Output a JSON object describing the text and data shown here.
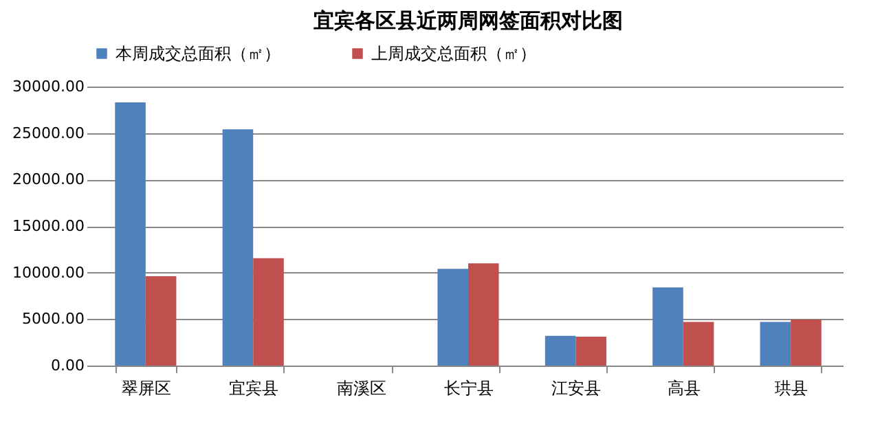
{
  "chart_data": {
    "type": "bar",
    "title": "宜宾各区县近两周网签面积对比图",
    "categories": [
      "翠屏区",
      "宜宾县",
      "南溪区",
      "长宁县",
      "江安县",
      "高县",
      "珙县"
    ],
    "series": [
      {
        "name": "本周成交总面积（㎡）",
        "color": "#4f81bd",
        "values": [
          28300,
          25400,
          0,
          10400,
          3200,
          8400,
          4700
        ]
      },
      {
        "name": "上周成交总面积（㎡）",
        "color": "#c0504d",
        "values": [
          9600,
          11550,
          0,
          11000,
          3100,
          4700,
          4950
        ]
      }
    ],
    "ylim": [
      0,
      30000
    ],
    "yticks": [
      {
        "value": 0,
        "label": "0.00"
      },
      {
        "value": 5000,
        "label": "5000.00"
      },
      {
        "value": 10000,
        "label": "10000.00"
      },
      {
        "value": 15000,
        "label": "15000.00"
      },
      {
        "value": 20000,
        "label": "20000.00"
      },
      {
        "value": 25000,
        "label": "25000.00"
      },
      {
        "value": 30000,
        "label": "30000.00"
      }
    ],
    "grid": "y",
    "legend": "top"
  }
}
